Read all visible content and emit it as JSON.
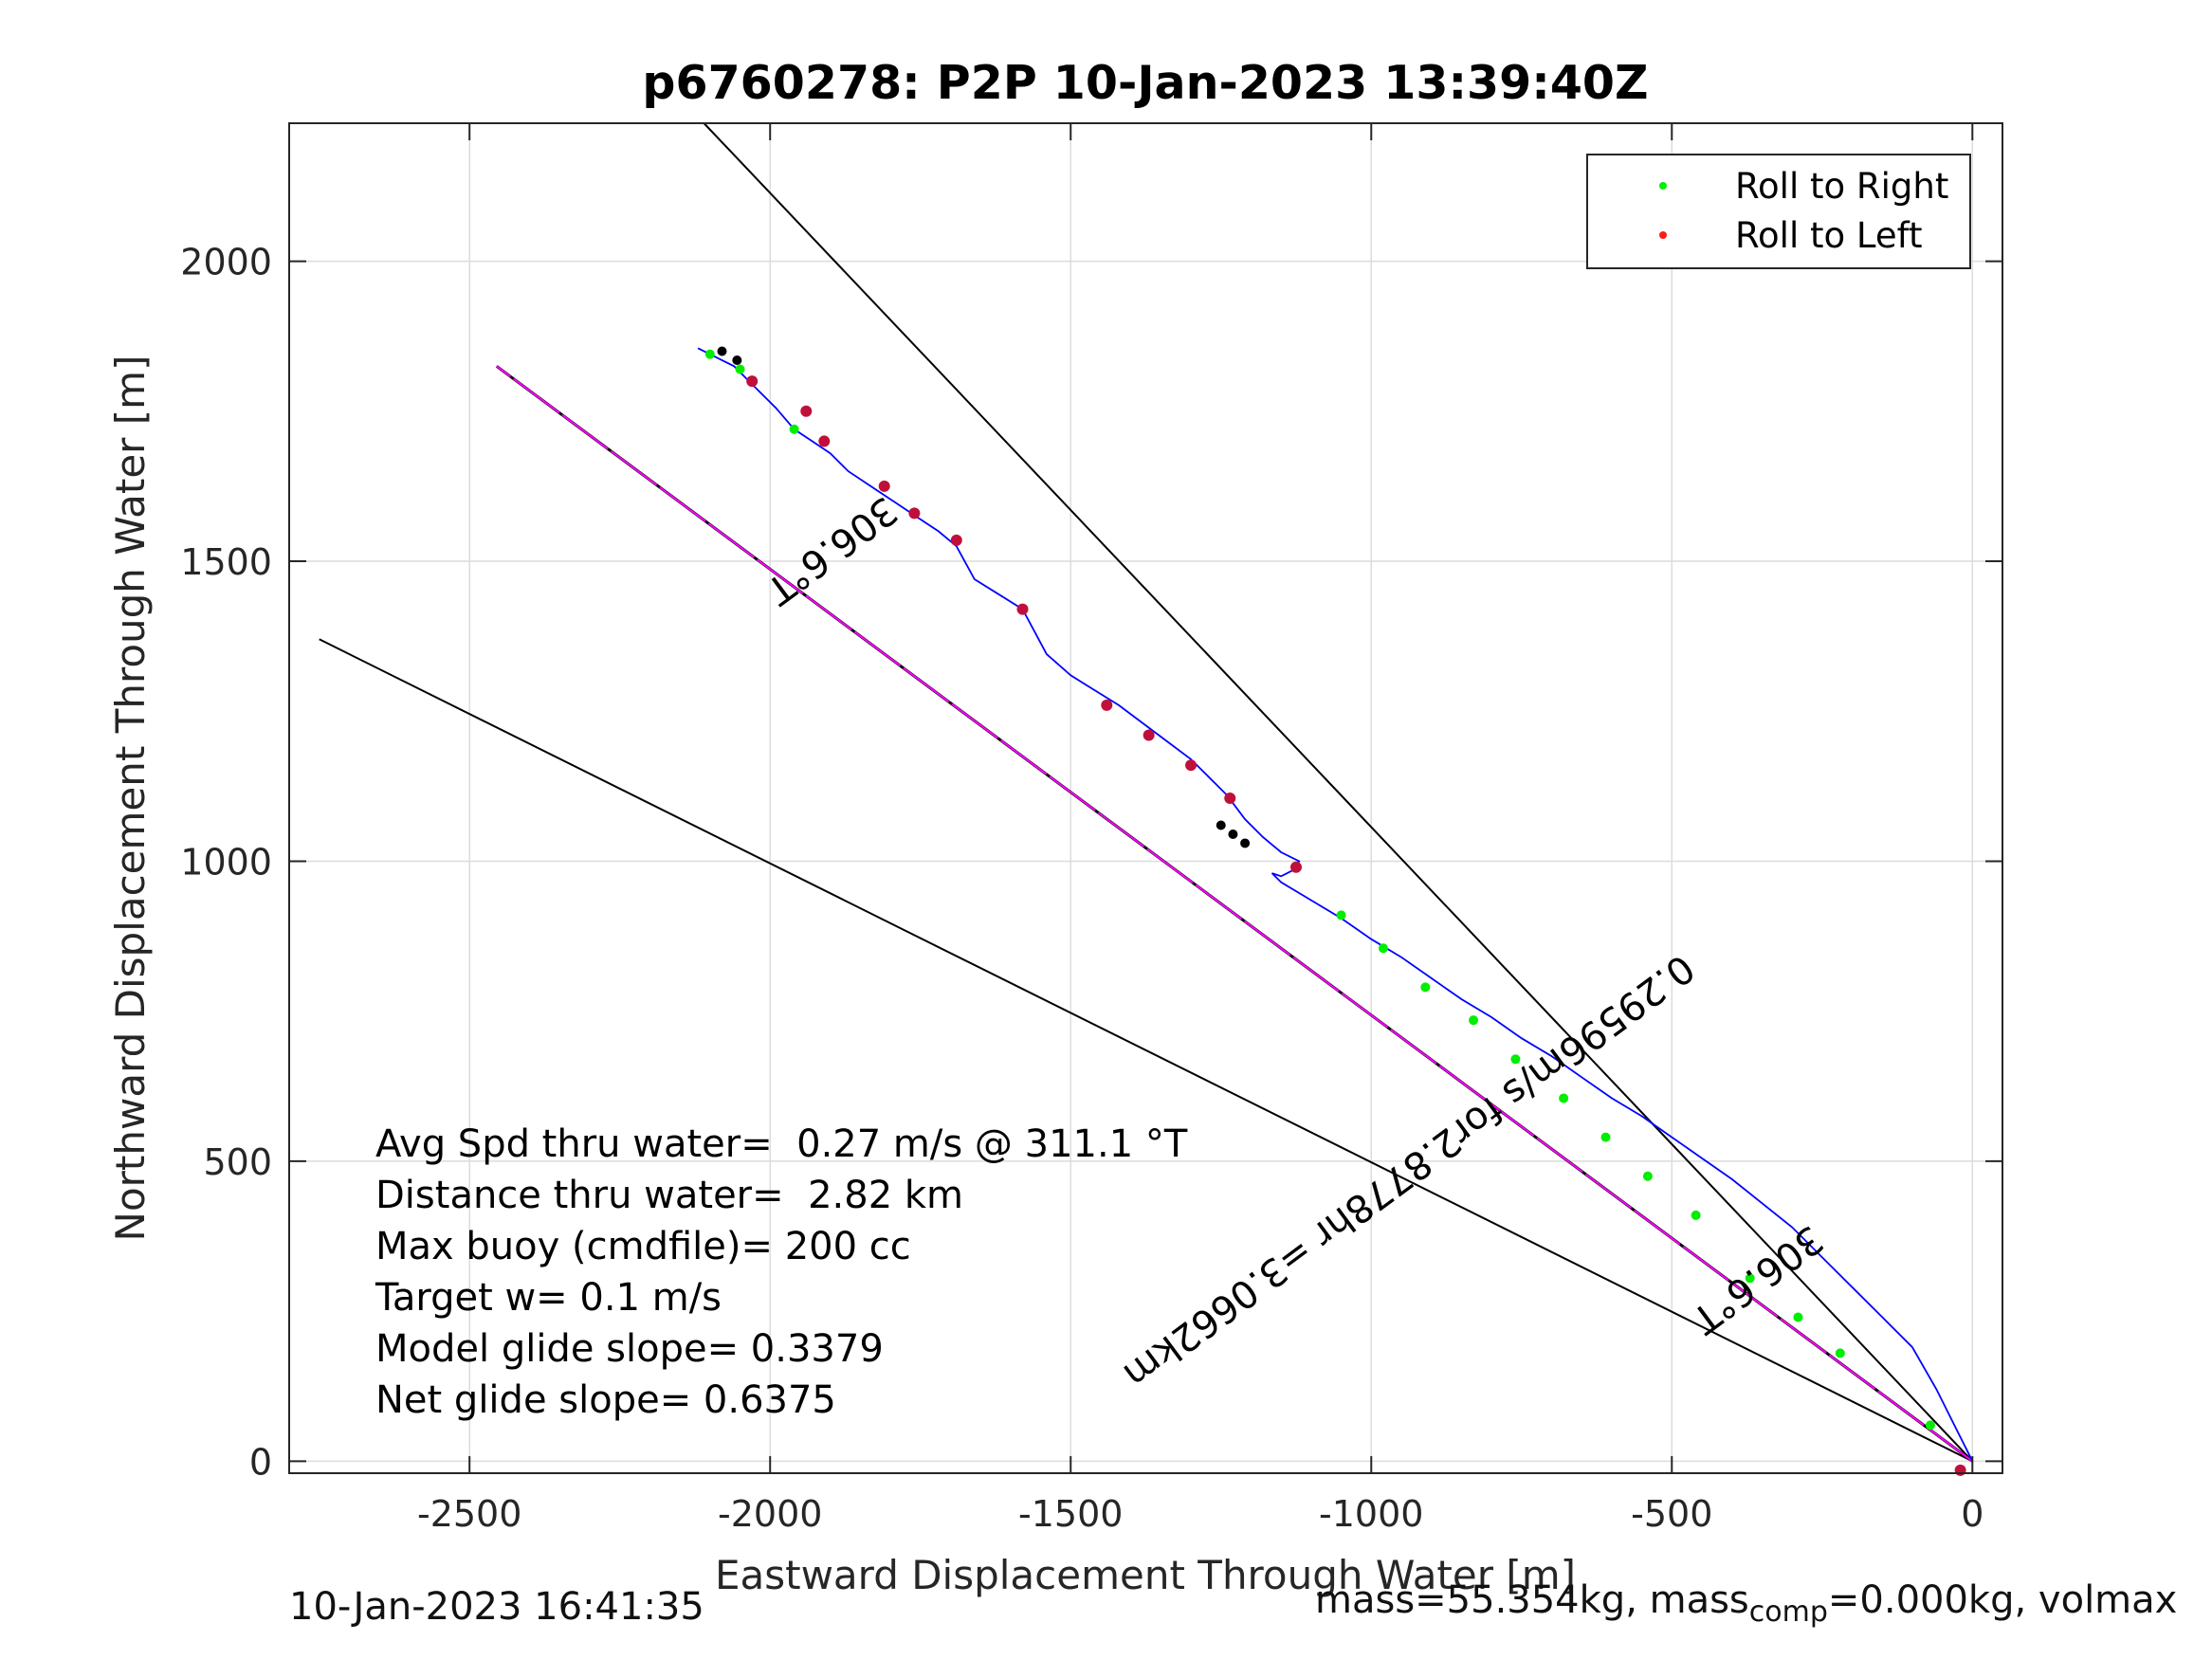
{
  "chart_data": {
    "type": "line",
    "title": "p6760278: P2P 10-Jan-2023 13:39:40Z",
    "xlabel": "Eastward Displacement Through Water [m]",
    "ylabel": "Northward Displacement Through Water [m]",
    "xlim": [
      -2800,
      50
    ],
    "ylim": [
      -20,
      2230
    ],
    "xticks": [
      -2500,
      -2000,
      -1500,
      -1000,
      -500,
      0
    ],
    "yticks": [
      0,
      500,
      1000,
      1500,
      2000
    ],
    "grid": true,
    "legend_placement": "top-right",
    "legend": [
      {
        "label": "Roll to Right",
        "color": "#00ee00"
      },
      {
        "label": "Roll to Left",
        "color": "#ff1a1a"
      }
    ],
    "colors": {
      "track": "#0000ff",
      "course_line": "#ff00ff",
      "reference_lines": "#000000",
      "roll_left_marker": "#c0103a",
      "roll_right_marker": "#00ee00"
    },
    "reference_lines": [
      {
        "x": [
          0,
          -2110
        ],
        "y": [
          0,
          2230
        ]
      },
      {
        "x": [
          0,
          -2750
        ],
        "y": [
          0,
          1370
        ]
      }
    ],
    "course_line": {
      "x": [
        0,
        -2455
      ],
      "y": [
        0,
        1825
      ]
    },
    "track": {
      "x": [
        -2120,
        -2090,
        -2060,
        -2040,
        -2020,
        -1990,
        -1960,
        -1930,
        -1900,
        -1870,
        -1840,
        -1810,
        -1780,
        -1750,
        -1720,
        -1690,
        -1660,
        -1620,
        -1580,
        -1540,
        -1500,
        -1460,
        -1420,
        -1380,
        -1340,
        -1300,
        -1270,
        -1240,
        -1210,
        -1180,
        -1150,
        -1120,
        -1130,
        -1150,
        -1165,
        -1150,
        -1100,
        -1050,
        -1000,
        -950,
        -900,
        -850,
        -800,
        -750,
        -700,
        -650,
        -600,
        -550,
        -500,
        -450,
        -400,
        -350,
        -300,
        -250,
        -200,
        -150,
        -100,
        -60,
        -30,
        -10,
        0
      ],
      "y": [
        1855,
        1840,
        1825,
        1805,
        1785,
        1755,
        1720,
        1700,
        1680,
        1650,
        1630,
        1610,
        1590,
        1570,
        1550,
        1525,
        1470,
        1445,
        1420,
        1345,
        1310,
        1285,
        1260,
        1230,
        1200,
        1170,
        1140,
        1110,
        1070,
        1040,
        1015,
        1000,
        985,
        975,
        980,
        965,
        935,
        905,
        870,
        840,
        805,
        770,
        740,
        705,
        675,
        640,
        605,
        575,
        540,
        505,
        470,
        430,
        390,
        340,
        290,
        240,
        190,
        120,
        60,
        20,
        0
      ]
    },
    "roll_left_points": {
      "x": [
        -2030,
        -1940,
        -1910,
        -1810,
        -1760,
        -1690,
        -1580,
        -1440,
        -1370,
        -1300,
        -1235,
        -1125,
        -20
      ],
      "y": [
        1800,
        1750,
        1700,
        1625,
        1580,
        1535,
        1420,
        1260,
        1210,
        1160,
        1105,
        990,
        -15
      ]
    },
    "roll_right_points": {
      "x": [
        -2100,
        -2050,
        -1960,
        -1050,
        -980,
        -910,
        -830,
        -760,
        -680,
        -610,
        -540,
        -460,
        -370,
        -290,
        -220,
        -70
      ],
      "y": [
        1845,
        1820,
        1720,
        910,
        855,
        790,
        735,
        670,
        605,
        540,
        475,
        410,
        305,
        240,
        180,
        60
      ]
    },
    "dive_start_marks": {
      "x": [
        -2080,
        -2055,
        -1250,
        -1230,
        -1210
      ],
      "y": [
        1850,
        1835,
        1060,
        1045,
        1030
      ]
    },
    "annotations": [
      {
        "text": "306.6°T",
        "at": [
          -1910,
          1535
        ],
        "rotation_deg": 143.4
      },
      {
        "text": "0.29596m/s for2.8778hr =3.0662km",
        "at": [
          -950,
          500
        ],
        "rotation_deg": 143.4
      },
      {
        "text": "306.6°T",
        "at": [
          -370,
          320
        ],
        "rotation_deg": 143.4
      }
    ],
    "stats_lines": [
      "Avg Spd thru water=  0.27 m/s @ 311.1 °T",
      "Distance thru water=  2.82 km",
      "Max buoy (cmdfile)= 200 cc",
      "Target w= 0.1 m/s",
      "Model glide slope= 0.3379",
      "Net glide slope= 0.6375"
    ]
  },
  "footer": {
    "left_timestamp": "10-Jan-2023 16:41:35",
    "right_prefix": "mass=55.354kg, mass",
    "right_subscript": "comp",
    "right_suffix": "=0.000kg, volmax"
  }
}
